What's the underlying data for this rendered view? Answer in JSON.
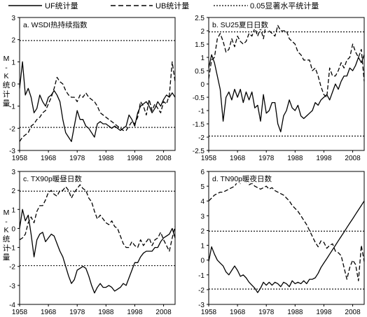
{
  "legend": [
    {
      "label": "UF统计量",
      "style": "solid"
    },
    {
      "label": "UB统计量",
      "style": "dashed"
    },
    {
      "label": "0.05显著水平统计量",
      "style": "dotted"
    }
  ],
  "chart_data": [
    {
      "type": "line",
      "title": "a. WSDI热持续指数",
      "ylabel": "M-K统计量",
      "xlabel": "",
      "x": [
        1958,
        1959,
        1960,
        1961,
        1962,
        1963,
        1964,
        1965,
        1966,
        1967,
        1968,
        1969,
        1970,
        1971,
        1972,
        1973,
        1974,
        1975,
        1976,
        1977,
        1978,
        1979,
        1980,
        1981,
        1982,
        1983,
        1984,
        1985,
        1986,
        1987,
        1988,
        1989,
        1990,
        1991,
        1992,
        1993,
        1994,
        1995,
        1996,
        1997,
        1998,
        1999,
        2000,
        2001,
        2002,
        2003,
        2004,
        2005,
        2006,
        2007,
        2008,
        2009,
        2010,
        2011,
        2012
      ],
      "xticks": [
        1958,
        1968,
        1978,
        1988,
        1998,
        2008
      ],
      "ylim": [
        -3,
        3
      ],
      "yticks": [
        -3,
        -2,
        -1,
        0,
        1,
        2,
        3
      ],
      "significance": [
        -1.96,
        1.96
      ],
      "series": [
        {
          "style": "solid",
          "values": [
            -0.2,
            1.0,
            -0.5,
            -0.2,
            -0.6,
            -1.3,
            -1.1,
            -0.5,
            -0.8,
            -1.0,
            -0.6,
            -0.5,
            -0.3,
            -0.5,
            -0.8,
            -1.6,
            -2.2,
            -2.4,
            -2.6,
            -1.9,
            -1.2,
            -1.6,
            -1.6,
            -1.9,
            -2.0,
            -2.2,
            -2.4,
            -1.8,
            -1.7,
            -1.8,
            -1.8,
            -1.9,
            -2.0,
            -1.9,
            -2.0,
            -2.1,
            -2.0,
            -1.9,
            -1.4,
            -1.6,
            -1.9,
            -1.3,
            -1.0,
            -0.9,
            -0.8,
            -1.0,
            -1.3,
            -1.1,
            -0.8,
            -1.0,
            -0.7,
            -0.5,
            -0.6,
            -0.4,
            -0.6
          ]
        },
        {
          "style": "dashed",
          "values": [
            -2.6,
            -2.4,
            -2.3,
            -2.2,
            -1.9,
            -1.8,
            -1.6,
            -1.5,
            -1.3,
            -1.2,
            -0.9,
            -0.6,
            -0.2,
            0.3,
            0.1,
            0.0,
            -0.3,
            -0.5,
            -0.6,
            -0.6,
            -0.8,
            -0.5,
            -0.6,
            -0.4,
            -0.6,
            -0.7,
            -0.8,
            -1.0,
            -1.3,
            -1.4,
            -1.5,
            -1.6,
            -1.7,
            -1.8,
            -1.9,
            -2.0,
            -2.1,
            -2.1,
            -1.9,
            -1.7,
            -1.8,
            -1.5,
            -0.8,
            -1.0,
            -1.4,
            -0.7,
            -1.2,
            -0.9,
            -1.1,
            -1.3,
            -0.8,
            -0.9,
            -0.5,
            1.0,
            0.1
          ]
        }
      ]
    },
    {
      "type": "line",
      "title": "b. SU25夏日日数",
      "ylabel": "",
      "xlabel": "",
      "x": [
        1958,
        1959,
        1960,
        1961,
        1962,
        1963,
        1964,
        1965,
        1966,
        1967,
        1968,
        1969,
        1970,
        1971,
        1972,
        1973,
        1974,
        1975,
        1976,
        1977,
        1978,
        1979,
        1980,
        1981,
        1982,
        1983,
        1984,
        1985,
        1986,
        1987,
        1988,
        1989,
        1990,
        1991,
        1992,
        1993,
        1994,
        1995,
        1996,
        1997,
        1998,
        1999,
        2000,
        2001,
        2002,
        2003,
        2004,
        2005,
        2006,
        2007,
        2008,
        2009,
        2010,
        2011,
        2012
      ],
      "xticks": [
        1958,
        1968,
        1978,
        1988,
        1998,
        2008
      ],
      "ylim": [
        -2.5,
        2.5
      ],
      "yticks": [
        -2.5,
        -2,
        -1.5,
        -1,
        -0.5,
        0,
        0.5,
        1,
        1.5,
        2,
        2.5
      ],
      "significance": [
        -1.96,
        1.96
      ],
      "series": [
        {
          "style": "solid",
          "values": [
            0.6,
            1.1,
            0.8,
            0.3,
            -0.2,
            -1.4,
            -0.5,
            -0.3,
            -0.6,
            -0.2,
            -0.5,
            -0.2,
            -0.7,
            -0.3,
            -0.6,
            -0.3,
            -0.9,
            -0.8,
            -1.4,
            -0.4,
            -1.1,
            -1.0,
            -0.7,
            -0.7,
            -1.5,
            -1.8,
            -1.2,
            -1.0,
            -0.6,
            -0.9,
            -1.0,
            -0.8,
            -1.2,
            -1.3,
            -1.2,
            -1.1,
            -1.0,
            -0.7,
            -0.8,
            -0.6,
            -0.5,
            -0.4,
            -0.6,
            -0.3,
            0.0,
            -0.2,
            0.1,
            0.3,
            0.3,
            0.6,
            0.5,
            0.7,
            1.0,
            0.8,
            1.1
          ]
        },
        {
          "style": "dashed",
          "values": [
            0.2,
            0.9,
            1.0,
            1.7,
            1.9,
            1.6,
            1.2,
            1.3,
            1.7,
            1.4,
            1.8,
            1.6,
            1.5,
            1.6,
            1.9,
            1.8,
            2.1,
            1.8,
            2.1,
            1.7,
            2.3,
            2.0,
            1.9,
            1.8,
            2.2,
            2.0,
            2.0,
            2.0,
            1.7,
            1.6,
            1.5,
            1.2,
            1.1,
            0.9,
            0.9,
            0.9,
            0.5,
            0.6,
            0.3,
            -0.1,
            -0.4,
            -0.5,
            0.6,
            0.3,
            0.3,
            0.5,
            0.8,
            0.6,
            0.9,
            1.0,
            1.5,
            1.2,
            1.0,
            1.3,
            0.1
          ]
        }
      ]
    },
    {
      "type": "line",
      "title": "c. TX90p暖昼日数",
      "ylabel": "M-K统计量",
      "xlabel": "",
      "x": [
        1958,
        1959,
        1960,
        1961,
        1962,
        1963,
        1964,
        1965,
        1966,
        1967,
        1968,
        1969,
        1970,
        1971,
        1972,
        1973,
        1974,
        1975,
        1976,
        1977,
        1978,
        1979,
        1980,
        1981,
        1982,
        1983,
        1984,
        1985,
        1986,
        1987,
        1988,
        1989,
        1990,
        1991,
        1992,
        1993,
        1994,
        1995,
        1996,
        1997,
        1998,
        1999,
        2000,
        2001,
        2002,
        2003,
        2004,
        2005,
        2006,
        2007,
        2008,
        2009,
        2010,
        2011,
        2012
      ],
      "xticks": [
        1958,
        1968,
        1978,
        1988,
        1998,
        2008
      ],
      "ylim": [
        -4,
        3
      ],
      "yticks": [
        -4,
        -3,
        -2,
        -1,
        0,
        1,
        2,
        3
      ],
      "significance": [
        -1.96,
        1.96
      ],
      "series": [
        {
          "style": "solid",
          "values": [
            0.0,
            1.0,
            0.4,
            0.7,
            -0.3,
            -1.5,
            -0.6,
            -0.3,
            -0.2,
            -0.7,
            -0.5,
            -0.3,
            -0.4,
            -0.8,
            -1.2,
            -1.5,
            -2.0,
            -2.5,
            -2.9,
            -2.7,
            -2.2,
            -2.1,
            -2.0,
            -2.1,
            -2.5,
            -3.0,
            -3.4,
            -3.1,
            -2.9,
            -3.1,
            -3.1,
            -3.0,
            -3.1,
            -3.3,
            -3.2,
            -3.1,
            -2.9,
            -3.0,
            -2.6,
            -2.2,
            -1.8,
            -1.8,
            -1.5,
            -1.3,
            -1.2,
            -1.2,
            -1.2,
            -1.0,
            -1.0,
            -0.7,
            -0.5,
            -0.4,
            -0.3,
            0.0,
            -0.5
          ]
        },
        {
          "style": "dashed",
          "values": [
            -0.6,
            -0.5,
            -0.3,
            0.3,
            0.6,
            0.3,
            0.9,
            1.2,
            1.2,
            1.5,
            1.9,
            2.0,
            1.8,
            1.7,
            2.0,
            2.0,
            2.2,
            2.0,
            1.6,
            1.9,
            2.1,
            2.3,
            2.1,
            2.0,
            1.6,
            1.4,
            0.9,
            0.5,
            0.7,
            0.5,
            0.3,
            0.2,
            0.4,
            0.1,
            0.0,
            -0.4,
            -0.8,
            -1.0,
            -1.0,
            -0.7,
            -0.9,
            -1.0,
            -0.6,
            -0.9,
            -0.7,
            -0.5,
            -0.9,
            -0.6,
            -0.5,
            -0.2,
            -0.6,
            -0.9,
            -1.2,
            -0.5,
            0.1
          ]
        }
      ]
    },
    {
      "type": "line",
      "title": "d. TN90p暖夜日数",
      "ylabel": "",
      "xlabel": "",
      "x": [
        1958,
        1959,
        1960,
        1961,
        1962,
        1963,
        1964,
        1965,
        1966,
        1967,
        1968,
        1969,
        1970,
        1971,
        1972,
        1973,
        1974,
        1975,
        1976,
        1977,
        1978,
        1979,
        1980,
        1981,
        1982,
        1983,
        1984,
        1985,
        1986,
        1987,
        1988,
        1989,
        1990,
        1991,
        1992,
        1993,
        1994,
        1995,
        1996,
        1997,
        1998,
        1999,
        2000,
        2001,
        2002,
        2003,
        2004,
        2005,
        2006,
        2007,
        2008,
        2009,
        2010,
        2011,
        2012
      ],
      "xticks": [
        1958,
        1968,
        1978,
        1988,
        1998,
        2008
      ],
      "ylim": [
        -3,
        6
      ],
      "yticks": [
        -3,
        -2,
        -1,
        0,
        1,
        2,
        3,
        4,
        5,
        6
      ],
      "significance": [
        -1.96,
        1.96
      ],
      "series": [
        {
          "style": "solid",
          "values": [
            -0.1,
            0.9,
            0.4,
            0.0,
            -0.2,
            -0.4,
            -0.8,
            -1.0,
            -0.7,
            -0.4,
            -0.7,
            -1.1,
            -1.0,
            -1.2,
            -1.5,
            -1.7,
            -1.9,
            -2.2,
            -1.9,
            -1.5,
            -1.7,
            -1.5,
            -1.7,
            -1.5,
            -1.6,
            -1.8,
            -1.5,
            -1.6,
            -1.8,
            -1.4,
            -1.6,
            -1.5,
            -1.6,
            -1.4,
            -1.6,
            -1.3,
            -1.3,
            -1.2,
            -0.9,
            -0.5,
            -0.2,
            0.1,
            0.4,
            0.7,
            1.0,
            1.3,
            1.6,
            1.9,
            2.2,
            2.5,
            2.8,
            3.1,
            3.4,
            3.7,
            4.0
          ]
        },
        {
          "style": "dashed",
          "values": [
            4.0,
            4.2,
            4.4,
            4.5,
            4.6,
            4.6,
            4.7,
            4.8,
            4.9,
            5.0,
            5.3,
            5.2,
            5.4,
            5.3,
            5.1,
            5.2,
            5.0,
            4.9,
            4.8,
            4.9,
            5.0,
            4.8,
            4.9,
            4.7,
            4.6,
            4.5,
            4.4,
            4.2,
            4.0,
            3.7,
            3.5,
            3.3,
            3.0,
            2.7,
            2.4,
            2.0,
            1.6,
            1.2,
            0.9,
            1.3,
            1.2,
            0.8,
            1.0,
            1.1,
            0.6,
            0.5,
            0.3,
            -0.5,
            -1.3,
            -0.5,
            0.0,
            -0.3,
            -1.4,
            1.0,
            -0.1
          ]
        }
      ]
    }
  ]
}
